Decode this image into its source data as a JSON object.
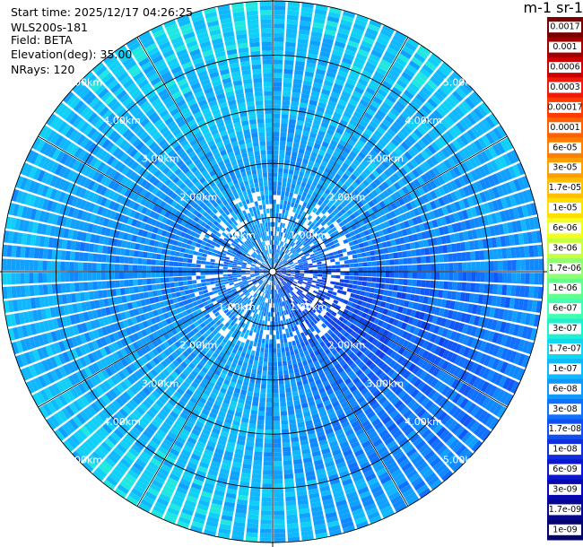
{
  "header": {
    "start_time": "Start time: 2025/12/17 04:26:25",
    "instrument": "WLS200s-181",
    "field": "Field: BETA",
    "elevation": "Elevation(deg): 35.00",
    "nrays": "NRays: 120"
  },
  "colorbar": {
    "title": "m-1 sr-1",
    "ticks": [
      "0.0017",
      "0.001",
      "0.0006",
      "0.0003",
      "0.00017",
      "0.0001",
      "6e-05",
      "3e-05",
      "1.7e-05",
      "1e-05",
      "6e-06",
      "3e-06",
      "1.7e-06",
      "1e-06",
      "6e-07",
      "3e-07",
      "1.7e-07",
      "1e-07",
      "6e-08",
      "3e-08",
      "1.7e-08",
      "1e-08",
      "6e-09",
      "3e-09",
      "1.7e-09",
      "1e-09"
    ],
    "colors": [
      "#7a0000",
      "#a00000",
      "#cc0000",
      "#ee1a0a",
      "#ff3c00",
      "#ff6000",
      "#ff8000",
      "#ff9e00",
      "#ffbe00",
      "#ffe000",
      "#f0ff20",
      "#c8ff40",
      "#90ff70",
      "#60ff90",
      "#40ffb0",
      "#20f0d0",
      "#10d8f0",
      "#10b8ff",
      "#1098ff",
      "#1070ff",
      "#1050f0",
      "#1030e0",
      "#0a18d0",
      "#0808b0",
      "#060690",
      "#040470"
    ]
  },
  "chart_data": {
    "type": "heatmap",
    "projection": "polar (PPI scan)",
    "field": "BETA",
    "elevation_deg": 35.0,
    "n_rays": 120,
    "range_rings": [
      "1.00km",
      "2.00km",
      "3.00km",
      "4.00km",
      "5.00km"
    ],
    "range_ring_values_km": [
      1,
      2,
      3,
      4,
      5
    ],
    "max_range_km": 5.0,
    "radial_lines_deg": [
      0,
      30,
      60,
      90,
      120,
      150,
      180,
      210,
      240,
      270,
      300,
      330
    ],
    "dominant_value_range": [
      "3e-08",
      "3e-07"
    ],
    "grid": true
  }
}
